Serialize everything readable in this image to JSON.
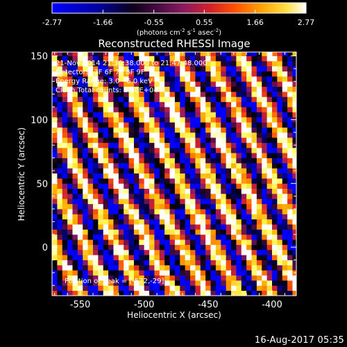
{
  "colorbar": {
    "ticks": [
      "-2.77",
      "-1.66",
      "-0.55",
      "0.55",
      "1.66",
      "2.77"
    ],
    "min": -2.77,
    "max": 2.77,
    "units_prefix": "(photons cm",
    "units_exp1": "-2",
    "units_mid": " s",
    "units_exp2": "-1",
    "units_suffix": " asec",
    "units_exp3": "-2",
    "units_close": ")"
  },
  "annotations": {
    "time_range": "21-Nov-2014 21:30:38.000 to 21:47:48.000",
    "detectors": "Detectors: 3F 6F 7F 8F 9F",
    "energy": "Energy Range: 3.0 - 6.0 keV",
    "method": "Clean     Total counts: 8.50E+04",
    "peak": "Position of Peak = [-572,-29]"
  },
  "timestamp": "16-Aug-2017 05:35",
  "colors": {
    "background": "#000000",
    "foreground": "#ffffff",
    "colormap": [
      "#0000ff",
      "#000066",
      "#000000",
      "#3d0a3a",
      "#8a1b64",
      "#d02030",
      "#ff5a00",
      "#ffb000",
      "#ffff60",
      "#ffffff"
    ]
  },
  "chart_data": {
    "type": "heatmap",
    "title": "Reconstructed RHESSI Image",
    "xlabel": "Heliocentric X (arcsec)",
    "ylabel": "Heliocentric Y (arcsec)",
    "xlim": [
      -572,
      -381
    ],
    "ylim": [
      -38,
      153
    ],
    "xticks": [
      -550,
      -500,
      -450,
      -400
    ],
    "yticks": [
      0,
      50,
      100,
      150
    ],
    "cell_size_arcsec": 4,
    "pattern": "diagonal stripes (upper-left to lower-right), alternating bright yellow/orange and dark blue",
    "stripe_period_arcsec": 26
  }
}
